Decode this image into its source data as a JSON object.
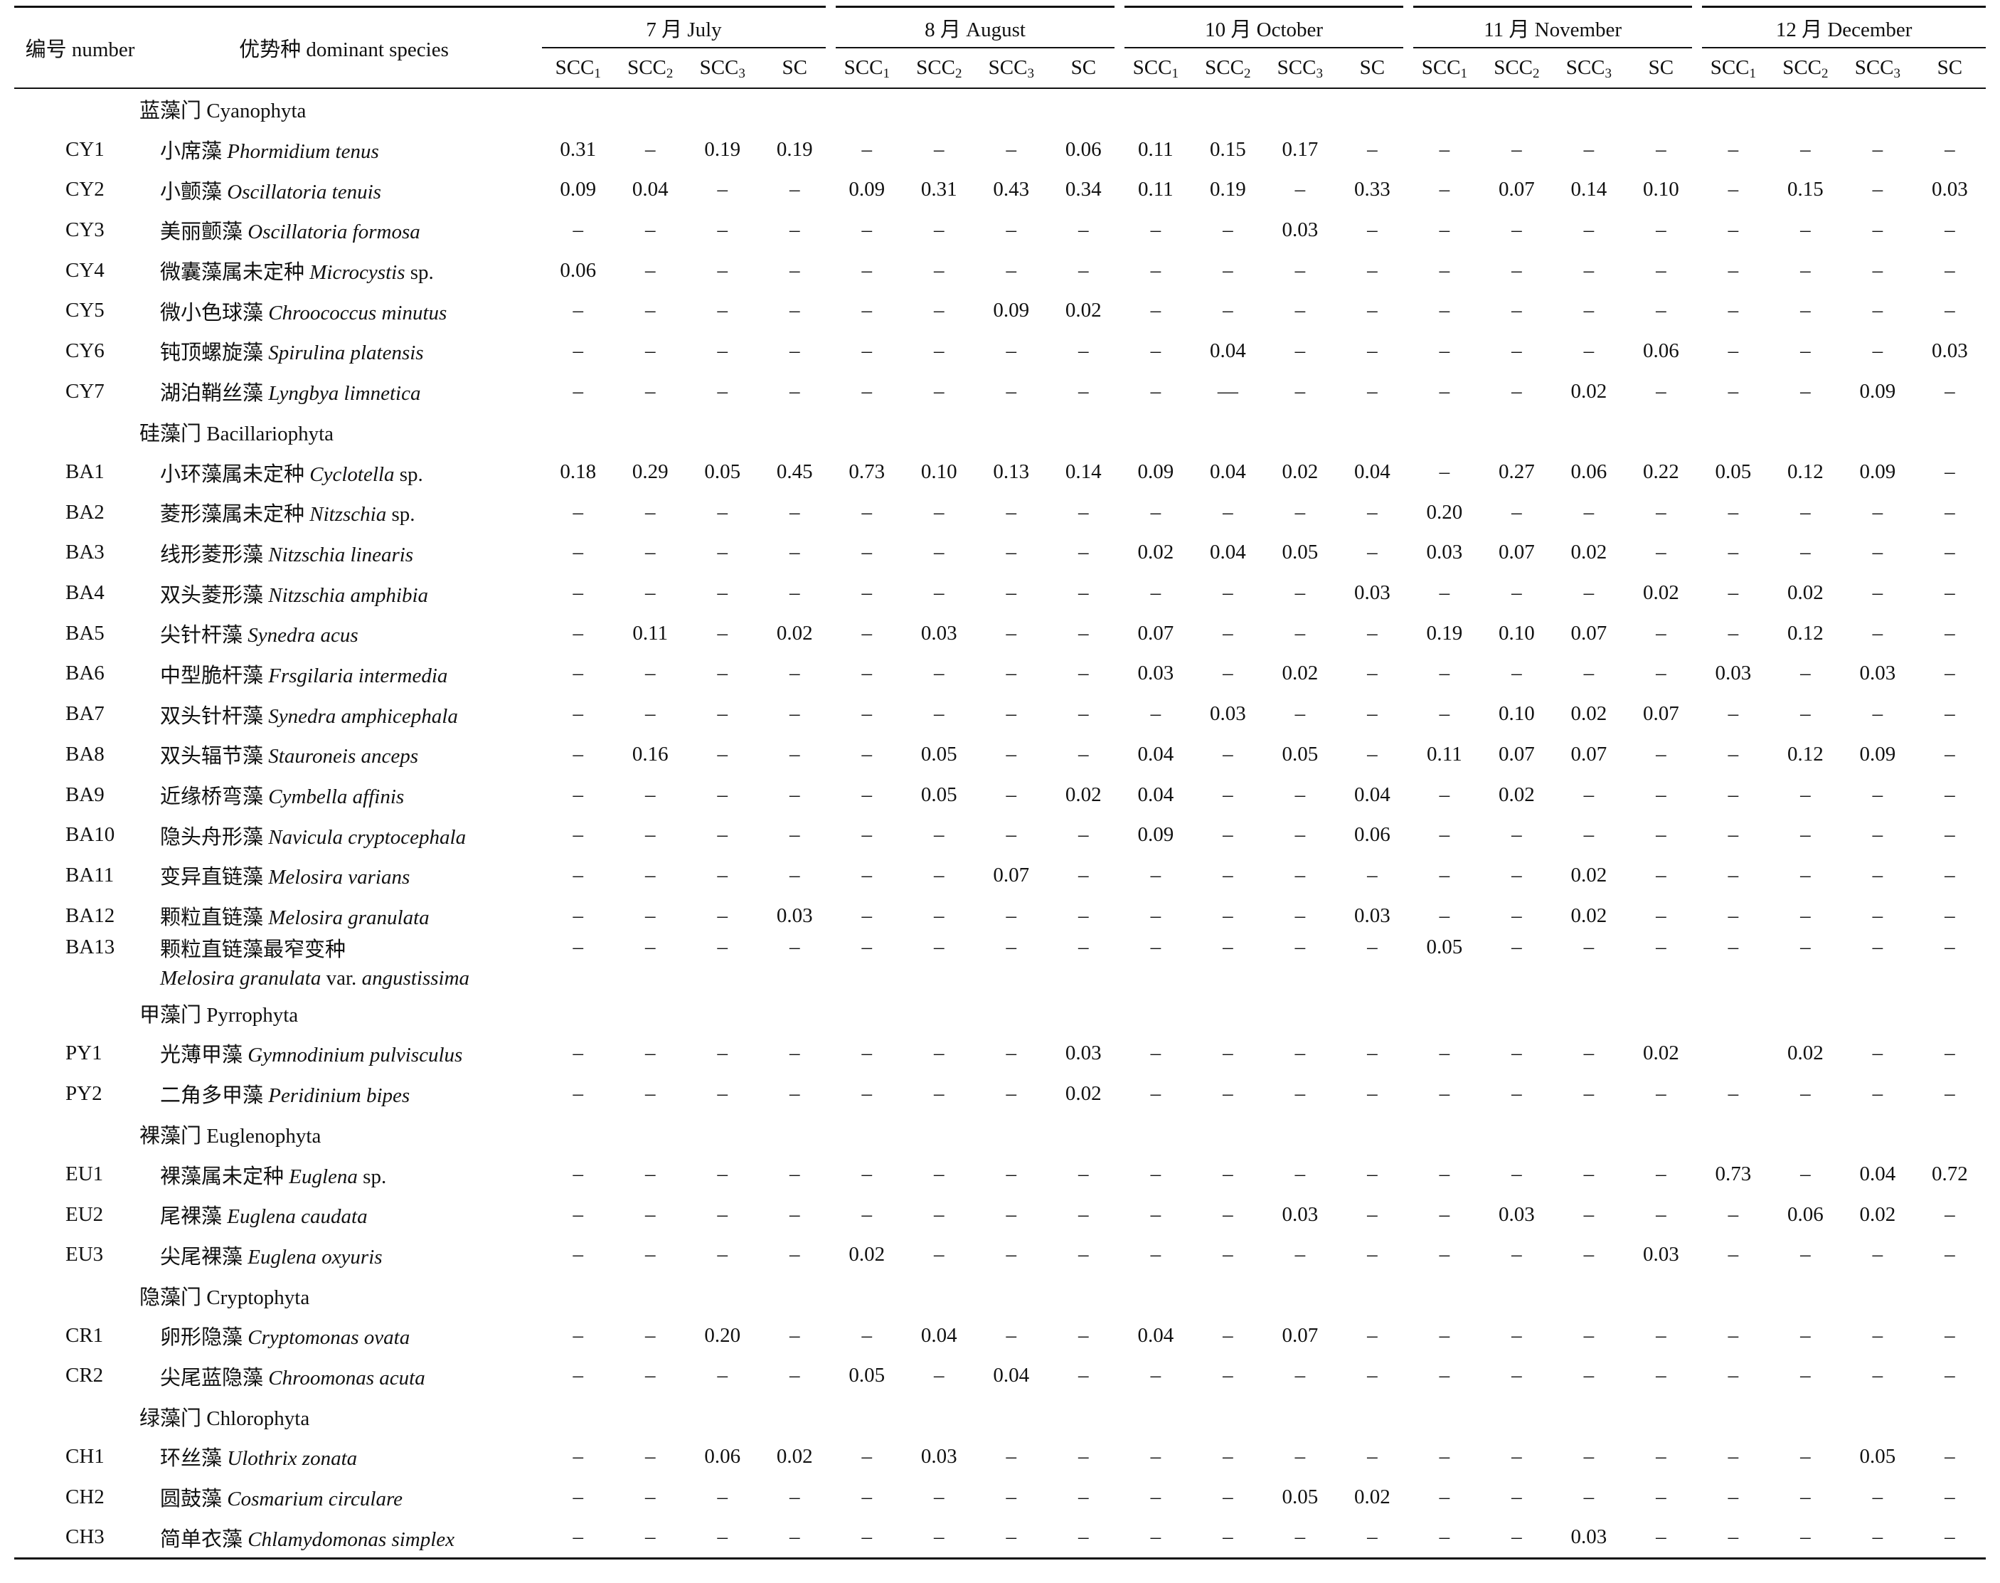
{
  "header": {
    "number_label": "编号  number",
    "species_label": "优势种 dominant species",
    "months": [
      "7 月  July",
      "8 月  August",
      "10 月  October",
      "11 月  November",
      "12 月  December"
    ],
    "sub_columns": [
      {
        "base": "SCC",
        "sub": "1"
      },
      {
        "base": "SCC",
        "sub": "2"
      },
      {
        "base": "SCC",
        "sub": "3"
      },
      {
        "base": "SC",
        "sub": ""
      }
    ]
  },
  "groups": [
    {
      "phylum": "蓝藻门  Cyanophyta",
      "rows": [
        {
          "code": "CY1",
          "cn": "小席藻",
          "latin": "Phormidium tenus",
          "suffix": "",
          "values": [
            "0.31",
            "–",
            "0.19",
            "0.19",
            "–",
            "–",
            "–",
            "0.06",
            "0.11",
            "0.15",
            "0.17",
            "–",
            "–",
            "–",
            "–",
            "–",
            "–",
            "–",
            "–",
            "–"
          ]
        },
        {
          "code": "CY2",
          "cn": "小颤藻",
          "latin": "Oscillatoria tenuis",
          "suffix": "",
          "values": [
            "0.09",
            "0.04",
            "–",
            "–",
            "0.09",
            "0.31",
            "0.43",
            "0.34",
            "0.11",
            "0.19",
            "–",
            "0.33",
            "–",
            "0.07",
            "0.14",
            "0.10",
            "–",
            "0.15",
            "–",
            "0.03"
          ]
        },
        {
          "code": "CY3",
          "cn": "美丽颤藻",
          "latin": "Oscillatoria formosa",
          "suffix": "",
          "values": [
            "–",
            "–",
            "–",
            "–",
            "–",
            "–",
            "–",
            "–",
            "–",
            "–",
            "0.03",
            "–",
            "–",
            "–",
            "–",
            "–",
            "–",
            "–",
            "–",
            "–"
          ]
        },
        {
          "code": "CY4",
          "cn": "微囊藻属未定种",
          "latin": "Microcystis",
          "suffix": " sp.",
          "values": [
            "0.06",
            "–",
            "–",
            "–",
            "–",
            "–",
            "–",
            "–",
            "–",
            "–",
            "–",
            "–",
            "–",
            "–",
            "–",
            "–",
            "–",
            "–",
            "–",
            "–"
          ]
        },
        {
          "code": "CY5",
          "cn": "微小色球藻",
          "latin": "Chroococcus minutus",
          "suffix": "",
          "values": [
            "–",
            "–",
            "–",
            "–",
            "–",
            "–",
            "0.09",
            "0.02",
            "–",
            "–",
            "–",
            "–",
            "–",
            "–",
            "–",
            "–",
            "–",
            "–",
            "–",
            "–"
          ]
        },
        {
          "code": "CY6",
          "cn": "钝顶螺旋藻",
          "latin": "Spirulina platensis",
          "suffix": "",
          "values": [
            "–",
            "–",
            "–",
            "–",
            "–",
            "–",
            "–",
            "–",
            "–",
            "0.04",
            "–",
            "–",
            "–",
            "–",
            "–",
            "0.06",
            "–",
            "–",
            "–",
            "0.03"
          ]
        },
        {
          "code": "CY7",
          "cn": "湖泊鞘丝藻",
          "latin": "Lyngbya limnetica",
          "suffix": "",
          "values": [
            "–",
            "–",
            "–",
            "–",
            "–",
            "–",
            "–",
            "–",
            "–",
            "—",
            "–",
            "–",
            "–",
            "–",
            "0.02",
            "–",
            "–",
            "–",
            "0.09",
            "–"
          ]
        }
      ]
    },
    {
      "phylum": "硅藻门  Bacillariophyta",
      "rows": [
        {
          "code": "BA1",
          "cn": "小环藻属未定种",
          "latin": "Cyclotella",
          "suffix": " sp.",
          "values": [
            "0.18",
            "0.29",
            "0.05",
            "0.45",
            "0.73",
            "0.10",
            "0.13",
            "0.14",
            "0.09",
            "0.04",
            "0.02",
            "0.04",
            "–",
            "0.27",
            "0.06",
            "0.22",
            "0.05",
            "0.12",
            "0.09",
            "–"
          ]
        },
        {
          "code": "BA2",
          "cn": "菱形藻属未定种",
          "latin": "Nitzschia",
          "suffix": " sp.",
          "values": [
            "–",
            "–",
            "–",
            "–",
            "–",
            "–",
            "–",
            "–",
            "–",
            "–",
            "–",
            "–",
            "0.20",
            "–",
            "–",
            "–",
            "–",
            "–",
            "–",
            "–"
          ]
        },
        {
          "code": "BA3",
          "cn": "线形菱形藻",
          "latin": "Nitzschia linearis",
          "suffix": "",
          "values": [
            "–",
            "–",
            "–",
            "–",
            "–",
            "–",
            "–",
            "–",
            "0.02",
            "0.04",
            "0.05",
            "–",
            "0.03",
            "0.07",
            "0.02",
            "–",
            "–",
            "–",
            "–",
            "–"
          ]
        },
        {
          "code": "BA4",
          "cn": "双头菱形藻",
          "latin": "Nitzschia amphibia",
          "suffix": "",
          "values": [
            "–",
            "–",
            "–",
            "–",
            "–",
            "–",
            "–",
            "–",
            "–",
            "–",
            "–",
            "0.03",
            "–",
            "–",
            "–",
            "0.02",
            "–",
            "0.02",
            "–",
            "–"
          ]
        },
        {
          "code": "BA5",
          "cn": "尖针杆藻",
          "latin": "Synedra acus",
          "suffix": "",
          "values": [
            "–",
            "0.11",
            "–",
            "0.02",
            "–",
            "0.03",
            "–",
            "–",
            "0.07",
            "–",
            "–",
            "–",
            "0.19",
            "0.10",
            "0.07",
            "–",
            "–",
            "0.12",
            "–",
            "–"
          ]
        },
        {
          "code": "BA6",
          "cn": "中型脆杆藻",
          "latin": "Frsgilaria intermedia",
          "suffix": "",
          "values": [
            "–",
            "–",
            "–",
            "–",
            "–",
            "–",
            "–",
            "–",
            "0.03",
            "–",
            "0.02",
            "–",
            "–",
            "–",
            "–",
            "–",
            "0.03",
            "–",
            "0.03",
            "–"
          ]
        },
        {
          "code": "BA7",
          "cn": "双头针杆藻",
          "latin": "Synedra amphicephala",
          "suffix": "",
          "values": [
            "–",
            "–",
            "–",
            "–",
            "–",
            "–",
            "–",
            "–",
            "–",
            "0.03",
            "–",
            "–",
            "–",
            "0.10",
            "0.02",
            "0.07",
            "–",
            "–",
            "–",
            "–"
          ]
        },
        {
          "code": "BA8",
          "cn": "双头辐节藻",
          "latin": "Stauroneis anceps",
          "suffix": "",
          "values": [
            "–",
            "0.16",
            "–",
            "–",
            "–",
            "0.05",
            "–",
            "–",
            "0.04",
            "–",
            "0.05",
            "–",
            "0.11",
            "0.07",
            "0.07",
            "–",
            "–",
            "0.12",
            "0.09",
            "–"
          ]
        },
        {
          "code": "BA9",
          "cn": "近缘桥弯藻",
          "latin": "Cymbella affinis",
          "suffix": "",
          "values": [
            "–",
            "–",
            "–",
            "–",
            "–",
            "0.05",
            "–",
            "0.02",
            "0.04",
            "–",
            "–",
            "0.04",
            "–",
            "0.02",
            "–",
            "–",
            "–",
            "–",
            "–",
            "–"
          ]
        },
        {
          "code": "BA10",
          "cn": "隐头舟形藻",
          "latin": "Navicula cryptocephala",
          "suffix": "",
          "values": [
            "–",
            "–",
            "–",
            "–",
            "–",
            "–",
            "–",
            "–",
            "0.09",
            "–",
            "–",
            "0.06",
            "–",
            "–",
            "–",
            "–",
            "–",
            "–",
            "–",
            "–"
          ]
        },
        {
          "code": "BA11",
          "cn": "变异直链藻",
          "latin": "Melosira varians",
          "suffix": "",
          "values": [
            "–",
            "–",
            "–",
            "–",
            "–",
            "–",
            "0.07",
            "–",
            "–",
            "–",
            "–",
            "–",
            "–",
            "–",
            "0.02",
            "–",
            "–",
            "–",
            "–",
            "–"
          ]
        },
        {
          "code": "BA12",
          "cn": "颗粒直链藻",
          "latin": "Melosira granulata",
          "suffix": "",
          "values": [
            "–",
            "–",
            "–",
            "0.03",
            "–",
            "–",
            "–",
            "–",
            "–",
            "–",
            "–",
            "0.03",
            "–",
            "–",
            "0.02",
            "–",
            "–",
            "–",
            "–",
            "–"
          ]
        },
        {
          "code": "BA13",
          "cn": "颗粒直链藻最窄变种",
          "latin": "Melosira granulata",
          "suffix": " var. ",
          "latin2": "angustissima",
          "twoline": true,
          "values": [
            "–",
            "–",
            "–",
            "–",
            "–",
            "–",
            "–",
            "–",
            "–",
            "–",
            "–",
            "–",
            "0.05",
            "–",
            "–",
            "–",
            "–",
            "–",
            "–",
            "–"
          ]
        }
      ]
    },
    {
      "phylum": "甲藻门  Pyrrophyta",
      "rows": [
        {
          "code": "PY1",
          "cn": "光薄甲藻",
          "latin": "Gymnodinium pulvisculus",
          "suffix": "",
          "values": [
            "–",
            "–",
            "–",
            "–",
            "–",
            "–",
            "–",
            "0.03",
            "–",
            "–",
            "–",
            "–",
            "–",
            "–",
            "–",
            "0.02",
            "",
            "0.02",
            "–",
            "–"
          ]
        },
        {
          "code": "PY2",
          "cn": "二角多甲藻",
          "latin": "Peridinium bipes",
          "suffix": "",
          "values": [
            "–",
            "–",
            "–",
            "–",
            "–",
            "–",
            "–",
            "0.02",
            "–",
            "–",
            "–",
            "–",
            "–",
            "–",
            "–",
            "–",
            "–",
            "–",
            "–",
            "–"
          ]
        }
      ]
    },
    {
      "phylum": "裸藻门  Euglenophyta",
      "rows": [
        {
          "code": "EU1",
          "cn": "裸藻属未定种",
          "latin": "Euglena",
          "suffix": " sp.",
          "values": [
            "–",
            "–",
            "–",
            "–",
            "–",
            "–",
            "–",
            "–",
            "–",
            "–",
            "–",
            "–",
            "–",
            "–",
            "–",
            "–",
            "0.73",
            "–",
            "0.04",
            "0.72"
          ]
        },
        {
          "code": "EU2",
          "cn": "尾裸藻",
          "latin": "Euglena caudata",
          "suffix": "",
          "values": [
            "–",
            "–",
            "–",
            "–",
            "–",
            "–",
            "–",
            "–",
            "–",
            "–",
            "0.03",
            "–",
            "–",
            "0.03",
            "–",
            "–",
            "–",
            "0.06",
            "0.02",
            "–"
          ]
        },
        {
          "code": "EU3",
          "cn": "尖尾裸藻",
          "latin": "Euglena oxyuris",
          "suffix": "",
          "values": [
            "–",
            "–",
            "–",
            "–",
            "0.02",
            "–",
            "–",
            "–",
            "–",
            "–",
            "–",
            "–",
            "–",
            "–",
            "–",
            "0.03",
            "–",
            "–",
            "–",
            "–"
          ]
        }
      ]
    },
    {
      "phylum": "隐藻门  Cryptophyta",
      "rows": [
        {
          "code": "CR1",
          "cn": "卵形隐藻",
          "latin": "Cryptomonas ovata",
          "suffix": "",
          "values": [
            "–",
            "–",
            "0.20",
            "–",
            "–",
            "0.04",
            "–",
            "–",
            "0.04",
            "–",
            "0.07",
            "–",
            "–",
            "–",
            "–",
            "–",
            "–",
            "–",
            "–",
            "–"
          ]
        },
        {
          "code": "CR2",
          "cn": "尖尾蓝隐藻",
          "latin": "Chroomonas acuta",
          "suffix": "",
          "values": [
            "–",
            "–",
            "–",
            "–",
            "0.05",
            "–",
            "0.04",
            "–",
            "–",
            "–",
            "–",
            "–",
            "–",
            "–",
            "–",
            "–",
            "–",
            "–",
            "–",
            "–"
          ]
        }
      ]
    },
    {
      "phylum": "绿藻门  Chlorophyta",
      "rows": [
        {
          "code": "CH1",
          "cn": "环丝藻",
          "latin": "Ulothrix zonata",
          "suffix": "",
          "values": [
            "–",
            "–",
            "0.06",
            "0.02",
            "–",
            "0.03",
            "–",
            "–",
            "–",
            "–",
            "–",
            "–",
            "–",
            "–",
            "–",
            "–",
            "–",
            "–",
            "0.05",
            "–"
          ]
        },
        {
          "code": "CH2",
          "cn": "圆鼓藻",
          "latin": "Cosmarium circulare",
          "suffix": "",
          "values": [
            "–",
            "–",
            "–",
            "–",
            "–",
            "–",
            "–",
            "–",
            "–",
            "–",
            "0.05",
            "0.02",
            "–",
            "–",
            "–",
            "–",
            "–",
            "–",
            "–",
            "–"
          ]
        },
        {
          "code": "CH3",
          "cn": "简单衣藻",
          "latin": "Chlamydomonas simplex",
          "suffix": "",
          "values": [
            "–",
            "–",
            "–",
            "–",
            "–",
            "–",
            "–",
            "–",
            "–",
            "–",
            "–",
            "–",
            "–",
            "–",
            "0.03",
            "–",
            "–",
            "–",
            "–",
            "–"
          ]
        }
      ]
    }
  ]
}
